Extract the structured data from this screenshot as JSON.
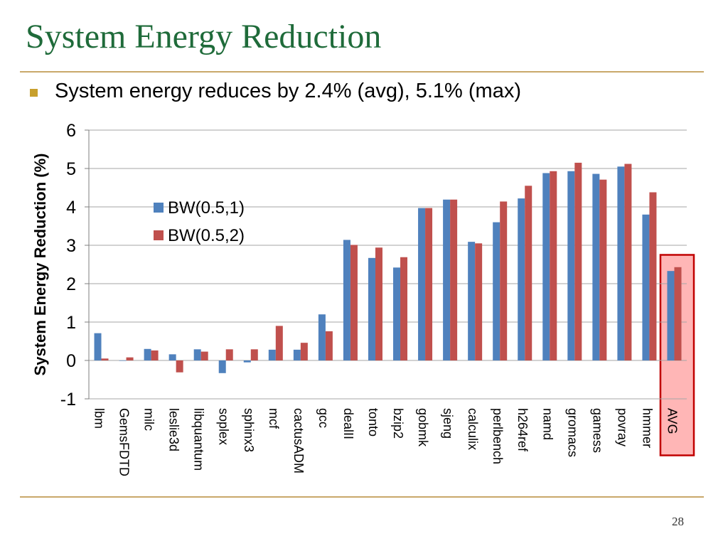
{
  "slide": {
    "title": "System Energy Reduction",
    "bullet": "System energy reduces by 2.4% (avg), 5.1% (max)",
    "page_number": "28"
  },
  "colors": {
    "title": "#1f6b3a",
    "rule": "#c9a86a",
    "bullet": "#c8a02d",
    "series1": "#4f81bd",
    "series2": "#c0504d",
    "highlight_fill": "#ffb6b6",
    "highlight_border": "#c00000"
  },
  "chart_data": {
    "type": "bar",
    "title": "",
    "xlabel": "",
    "ylabel": "System Energy Reduction (%)",
    "ylim": [
      -1,
      6
    ],
    "yticks": [
      -1,
      0,
      1,
      2,
      3,
      4,
      5,
      6
    ],
    "grid": true,
    "legend_position": "upper-left",
    "highlight_category": "AVG",
    "categories": [
      "lbm",
      "GemsFDTD",
      "milc",
      "leslie3d",
      "libquantum",
      "soplex",
      "sphinx3",
      "mcf",
      "cactusADM",
      "gcc",
      "dealII",
      "tonto",
      "bzip2",
      "gobmk",
      "sjeng",
      "calculix",
      "perlbench",
      "h264ref",
      "namd",
      "gromacs",
      "gamess",
      "povray",
      "hmmer",
      "AVG"
    ],
    "series": [
      {
        "name": "BW(0.5,1)",
        "values": [
          0.71,
          0.0,
          0.3,
          0.16,
          0.29,
          -0.33,
          -0.05,
          0.28,
          0.28,
          1.2,
          3.14,
          2.67,
          2.42,
          3.97,
          4.19,
          3.09,
          3.6,
          4.22,
          4.88,
          4.93,
          4.86,
          5.05,
          3.8,
          2.33
        ]
      },
      {
        "name": "BW(0.5,2)",
        "values": [
          0.05,
          0.08,
          0.26,
          -0.31,
          0.23,
          0.29,
          0.29,
          0.9,
          0.46,
          0.76,
          3.01,
          2.94,
          2.69,
          3.97,
          4.19,
          3.05,
          4.14,
          4.55,
          4.93,
          5.15,
          4.71,
          5.12,
          4.38,
          2.43
        ]
      }
    ]
  }
}
